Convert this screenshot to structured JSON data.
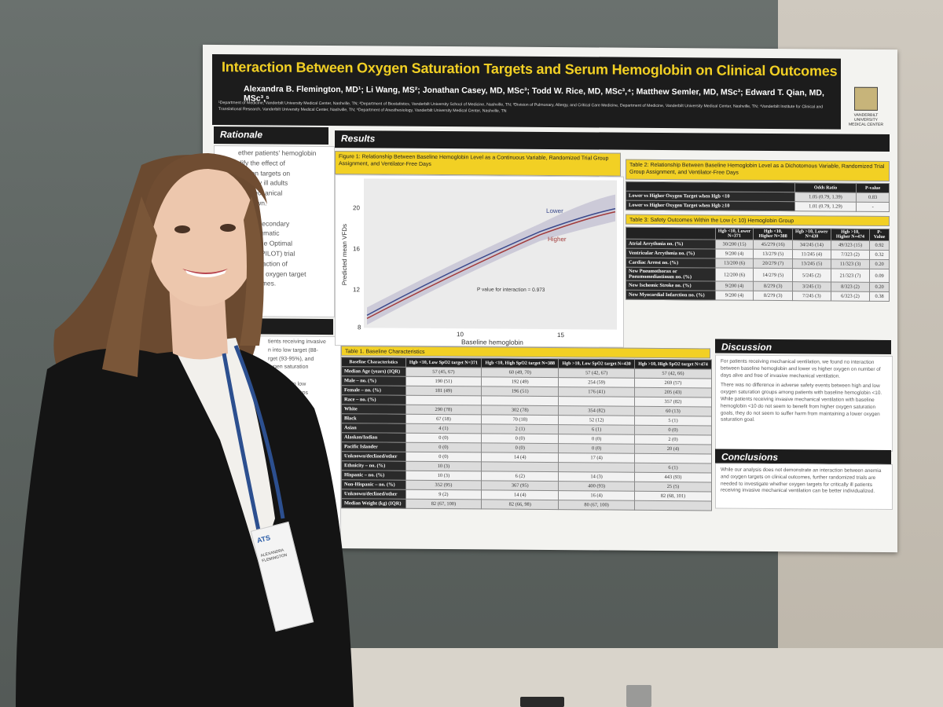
{
  "poster": {
    "title": "Interaction Between Oxygen Saturation Targets and Serum Hemoglobin on Clinical Outcomes",
    "authors": "Alexandra B. Flemington, MD¹; Li Wang, MS²; Jonathan Casey, MD, MSc³; Todd W. Rice, MD, MSc³,⁴; Matthew Semler, MD, MSc³; Edward T. Qian, MD, MSc³,⁵",
    "affiliations": "¹Department of Medicine, Vanderbilt University Medical Center, Nashville, TN; ²Department of Biostatistics, Vanderbilt University School of Medicine, Nashville, TN; ³Division of Pulmonary, Allergy, and Critical Care Medicine, Department of Medicine, Vanderbilt University Medical Center, Nashville, TN; ⁴Vanderbilt Institute for Clinical and Translational Research, Vanderbilt University Medical Center, Nashville, TN; ⁵Department of Anesthesiology, Vanderbilt University Medical Center, Nashville, TN",
    "logo_text": "VANDERBILT UNIVERSITY MEDICAL CENTER",
    "sections": {
      "rationale": "Rationale",
      "results": "Results",
      "methods": "hods",
      "discussion": "Discussion",
      "conclusions": "Conclusions"
    },
    "rationale_lines": [
      "ether patients' hemoglobin",
      "dify the effect of",
      "uration targets on",
      "critically ill adults",
      "ive mechanical",
      "unknown.",
      "",
      "med a secondary",
      "the Pragmatic",
      "tion of the Optimal",
      "argets (PILOT) trial",
      "the interaction of",
      "obin and oxygen target",
      "al outcomes."
    ],
    "methods_lines": [
      "tients receiving invasive",
      "n into low target (88-",
      "rget (93-95%), and",
      "xygen saturation",
      "",
      "moglobin in low",
      "on target groups",
      "rmed separate",
      "globin as a",
      "dichotomous",
      "than and less",
      "",
      "ardial",
      "",
      "roduced in",
      "ion",
      "up",
      "red as",
      "ed",
      "d p-",
      "ant."
    ],
    "figure1": {
      "title": "Figure 1: Relationship Between Baseline Hemoglobin Level as a Continuous Variable, Randomized Trial Group Assignment, and Ventilator-Free Days",
      "ylabel": "Predicted mean VFDs",
      "xlabel": "Baseline hemoglobin",
      "y_ticks": [
        "20",
        "16",
        "12",
        "8"
      ],
      "x_ticks": [
        "10",
        "15"
      ],
      "label_lower": "Lower",
      "label_higher": "Higher",
      "p_value": "P value for interaction = 0.973",
      "color_lower": "#3b4a8c",
      "color_higher": "#a23b3b"
    },
    "table2": {
      "title": "Table 2: Relationship Between Baseline Hemoglobin Level as a Dichotomous Variable, Randomized Trial Group Assignment, and Ventilator-Free Days",
      "headers": [
        "",
        "Odds Ratio",
        "P-value"
      ],
      "rows": [
        [
          "Lower vs Higher Oxygen Target when Hgb <10",
          "1.05 (0.79, 1.39)",
          "0.83"
        ],
        [
          "Lower vs Higher Oxygen Target when Hgb ≥10",
          "1.01 (0.79, 1.29)",
          "-"
        ]
      ]
    },
    "table3": {
      "title": "Table 3: Safety Outcomes Within the Low (< 10) Hemoglobin Group",
      "headers": [
        "",
        "Hgb <10, Lower N=371",
        "Hgb <10, Higher N=388",
        "Hgb >10, Lower N=430",
        "Hgb >10, Higher N=474",
        "P-Value"
      ],
      "rows": [
        [
          "Atrial Arrythmia no. (%)",
          "30/200 (15)",
          "45/279 (16)",
          "34/245 (14)",
          "49/323 (15)",
          "0.92"
        ],
        [
          "Ventricular Arrythmia no. (%)",
          "9/200 (4)",
          "13/279 (5)",
          "11/245 (4)",
          "7/323 (2)",
          "0.32"
        ],
        [
          "Cardiac Arrest no. (%)",
          "13/200 (6)",
          "20/279 (7)",
          "13/245 (5)",
          "11/323 (3)",
          "0.20"
        ],
        [
          "New Pneumothorax or Pneumomediastinum no. (%)",
          "12/200 (6)",
          "14/279 (5)",
          "5/245 (2)",
          "21/323 (7)",
          "0.09"
        ],
        [
          "New Ischemic Stroke no. (%)",
          "9/200 (4)",
          "8/279 (3)",
          "3/245 (1)",
          "8/323 (2)",
          "0.20"
        ],
        [
          "New Myocardial Infarction no. (%)",
          "9/200 (4)",
          "8/279 (3)",
          "7/245 (3)",
          "6/323 (2)",
          "0.38"
        ]
      ]
    },
    "table1": {
      "title": "Table 1. Baseline Characteristics",
      "headers": [
        "Baseline Characteristics",
        "Hgb <10, Low SpO2 target N=371",
        "Hgb <10, High SpO2 target N=388",
        "Hgb >10, Low SpO2 target N=430",
        "Hgb >10, High SpO2 target N=474"
      ],
      "rows": [
        [
          "Median Age (years) (IQR)",
          "57 (45, 67)",
          "60 (49, 70)",
          "57 (42, 67)",
          "57 (42, 66)"
        ],
        [
          "Male – no. (%)",
          "190 (51)",
          "192 (49)",
          "254 (59)",
          "269 (57)"
        ],
        [
          "Female – no. (%)",
          "181 (49)",
          "196 (51)",
          "176 (41)",
          "205 (43)"
        ],
        [
          "Race – no. (%)",
          "",
          "",
          "",
          "357 (82)"
        ],
        [
          "White",
          "290 (78)",
          "302 (78)",
          "354 (82)",
          "60 (13)"
        ],
        [
          "Black",
          "67 (18)",
          "70 (18)",
          "52 (12)",
          "5 (1)"
        ],
        [
          "Asian",
          "4 (1)",
          "2 (1)",
          "6 (1)",
          "0 (0)"
        ],
        [
          "Alaskan/Indian",
          "0 (0)",
          "0 (0)",
          "0 (0)",
          "2 (0)"
        ],
        [
          "Pacific Islander",
          "0 (0)",
          "0 (0)",
          "0 (0)",
          "20 (4)"
        ],
        [
          "Unknown/declined/other",
          "0 (0)",
          "14 (4)",
          "17 (4)",
          ""
        ],
        [
          "Ethnicity – no. (%)",
          "10 (3)",
          "",
          "",
          "6 (1)"
        ],
        [
          "Hispanic – no. (%)",
          "10 (3)",
          "6 (2)",
          "14 (3)",
          "443 (93)"
        ],
        [
          "Non-Hispanic – no. (%)",
          "352 (95)",
          "367 (95)",
          "400 (93)",
          "25 (5)"
        ],
        [
          "Unknown/declined/other",
          "9 (2)",
          "14 (4)",
          "16 (4)",
          "82 (68, 101)"
        ],
        [
          "Median Weight (kg) (IQR)",
          "82 (67, 100)",
          "82 (66, 98)",
          "80 (67, 100)",
          ""
        ]
      ]
    },
    "discussion_paragraphs": [
      "For patients receiving mechanical ventilation, we found no interaction between baseline hemoglobin and lower vs higher oxygen on number of days alive and free of invasive mechanical ventilation.",
      "There was no difference in adverse safety events between high and low oxygen saturation groups among patients with baseline hemoglobin <10. While patients receiving invasive mechanical ventilation with baseline hemoglobin <10 do not seem to benefit from higher oxygen saturation goals, they do not seem to suffer harm from maintaining a lower oxygen saturation goal."
    ],
    "conclusions_text": "While our analysis does not demonstrate an interaction between anemia and oxygen targets on clinical outcomes, further randomized trials are needed to investigate whether oxygen targets for critically ill patients receiving invasive mechanical ventilation can be better individualized."
  },
  "badge": {
    "logo": "ATS",
    "name": "ALEXANDRA FLEMINGTON"
  }
}
